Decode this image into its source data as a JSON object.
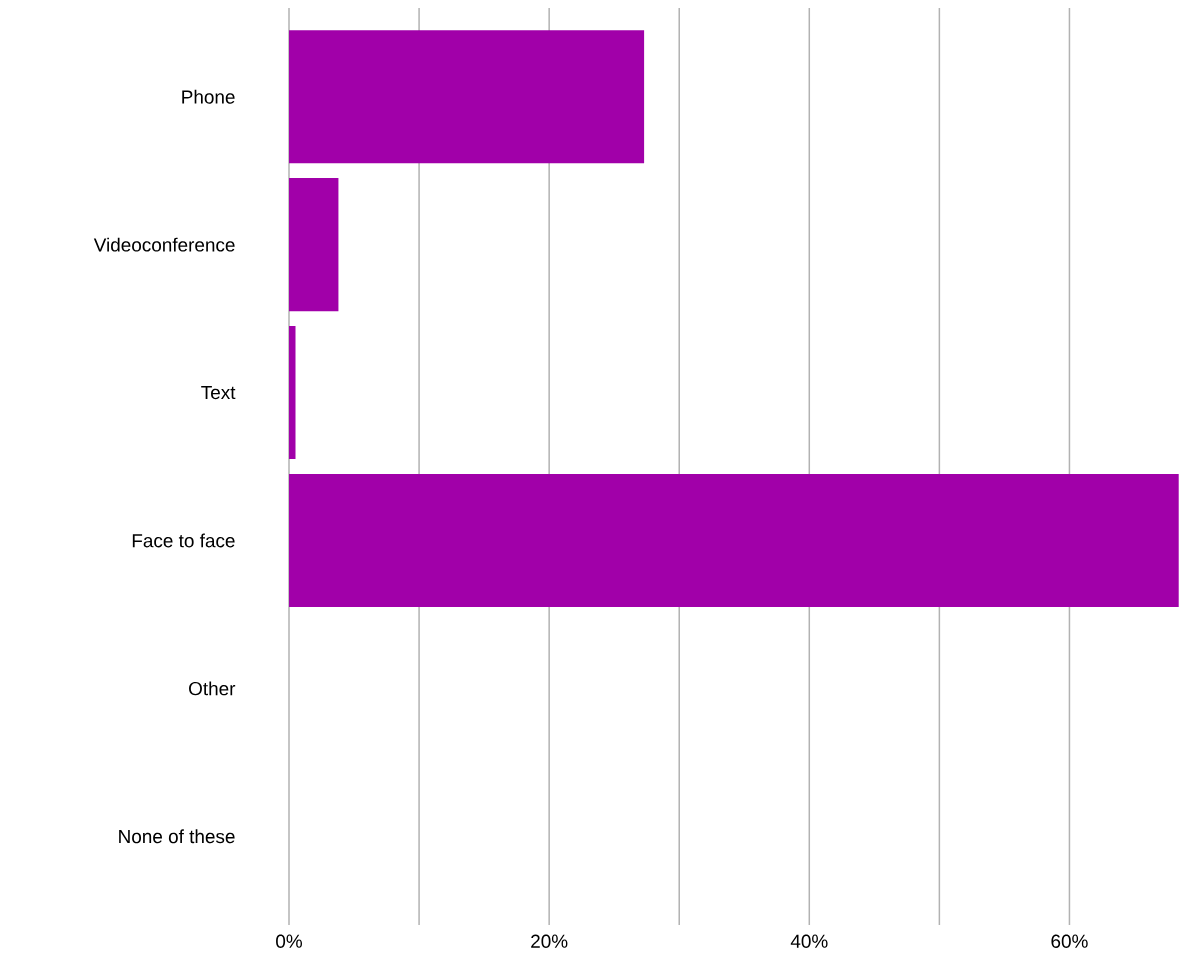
{
  "chart_data": {
    "type": "bar",
    "orientation": "horizontal",
    "categories": [
      "Phone",
      "Videoconference",
      "Text",
      "Face to face",
      "Other",
      "None of these"
    ],
    "values": [
      27.3,
      3.8,
      0.5,
      68.4,
      0,
      0
    ],
    "color": "#a100a9",
    "xlim": [
      0,
      68.5
    ],
    "xticks": [
      {
        "value": 0,
        "label": "0%"
      },
      {
        "value": 10,
        "label": null
      },
      {
        "value": 20,
        "label": "20%"
      },
      {
        "value": 30,
        "label": null
      },
      {
        "value": 40,
        "label": "40%"
      },
      {
        "value": 50,
        "label": null
      },
      {
        "value": 60,
        "label": "60%"
      }
    ],
    "grid": "x"
  }
}
